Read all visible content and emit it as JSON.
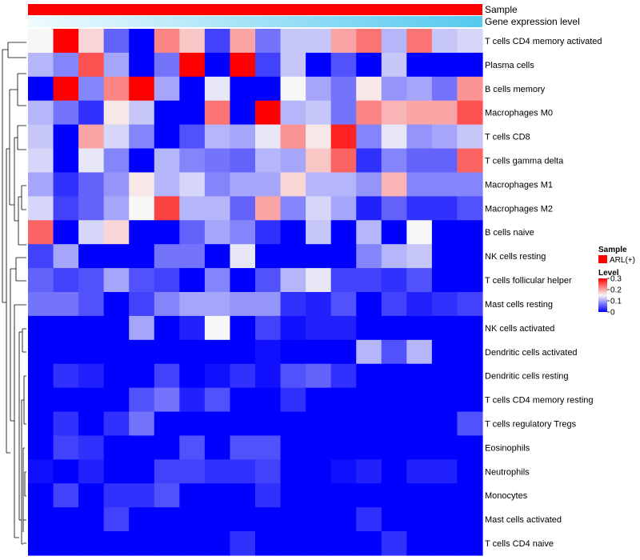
{
  "chart_data": {
    "type": "heatmap",
    "title": "",
    "annotations": [
      {
        "name": "Sample",
        "values": [
          "ARL(+)"
        ],
        "colors": [
          "#ff0000"
        ]
      },
      {
        "name": "Gene expression level",
        "gradient": [
          "#f0fbff",
          "#55c9ee"
        ]
      }
    ],
    "rows": [
      "T cells CD4 memory activated",
      "Plasma cells",
      "B cells memory",
      "Macrophages M0",
      "T cells CD8",
      "T cells gamma delta",
      "Macrophages M1",
      "Macrophages M2",
      "B cells naive",
      "NK cells resting",
      "T cells follicular helper",
      "Mast cells resting",
      "NK cells activated",
      "Dendritic cells activated",
      "Dendritic cells resting",
      "T cells CD4 memory resting",
      "T cells regulatory  Tregs",
      "Eosinophils",
      "Neutrophils",
      "Monocytes",
      "Mast cells activated",
      "T cells CD4 naive"
    ],
    "n_columns": 18,
    "values": [
      [
        0.15,
        0.3,
        0.17,
        0.06,
        0.0,
        0.22,
        0.18,
        0.04,
        0.2,
        0.07,
        0.12,
        0.12,
        0.2,
        0.23,
        0.11,
        0.23,
        0.12,
        0.13
      ],
      [
        0.11,
        0.08,
        0.25,
        0.1,
        0.0,
        0.07,
        0.3,
        0.0,
        0.3,
        0.04,
        0.12,
        0.0,
        0.05,
        0.0,
        0.12,
        0.0,
        0.0,
        0.0
      ],
      [
        0.0,
        0.3,
        0.08,
        0.22,
        0.3,
        0.1,
        0.0,
        0.14,
        0.0,
        0.0,
        0.15,
        0.1,
        0.07,
        0.16,
        0.09,
        0.1,
        0.07,
        0.21
      ],
      [
        0.11,
        0.07,
        0.03,
        0.16,
        0.12,
        0.0,
        0.0,
        0.23,
        0.0,
        0.3,
        0.11,
        0.12,
        0.07,
        0.22,
        0.19,
        0.2,
        0.2,
        0.25
      ],
      [
        0.12,
        0.0,
        0.2,
        0.13,
        0.08,
        0.0,
        0.05,
        0.11,
        0.1,
        0.14,
        0.21,
        0.16,
        0.28,
        0.08,
        0.14,
        0.09,
        0.1,
        0.12
      ],
      [
        0.13,
        0.0,
        0.14,
        0.08,
        0.0,
        0.11,
        0.08,
        0.07,
        0.06,
        0.11,
        0.1,
        0.18,
        0.24,
        0.03,
        0.08,
        0.06,
        0.06,
        0.24
      ],
      [
        0.1,
        0.03,
        0.06,
        0.09,
        0.16,
        0.11,
        0.13,
        0.08,
        0.1,
        0.1,
        0.17,
        0.11,
        0.11,
        0.09,
        0.19,
        0.08,
        0.08,
        0.08
      ],
      [
        0.13,
        0.04,
        0.06,
        0.1,
        0.15,
        0.26,
        0.11,
        0.11,
        0.06,
        0.2,
        0.08,
        0.13,
        0.1,
        0.02,
        0.06,
        0.03,
        0.03,
        0.05
      ],
      [
        0.24,
        0.0,
        0.13,
        0.17,
        0.0,
        0.0,
        0.06,
        0.1,
        0.08,
        0.03,
        0.0,
        0.12,
        0.0,
        0.11,
        0.0,
        0.15,
        0.0,
        0.0
      ],
      [
        0.04,
        0.1,
        0.0,
        0.0,
        0.0,
        0.07,
        0.07,
        0.0,
        0.14,
        0.0,
        0.0,
        0.0,
        0.0,
        0.08,
        0.11,
        0.12,
        0.0,
        0.0
      ],
      [
        0.06,
        0.04,
        0.05,
        0.1,
        0.05,
        0.04,
        0.0,
        0.08,
        0.0,
        0.05,
        0.11,
        0.14,
        0.04,
        0.04,
        0.03,
        0.05,
        0.0,
        0.0
      ],
      [
        0.07,
        0.07,
        0.05,
        0.0,
        0.04,
        0.08,
        0.1,
        0.1,
        0.09,
        0.09,
        0.03,
        0.02,
        0.05,
        0.0,
        0.04,
        0.02,
        0.03,
        0.04
      ],
      [
        0.0,
        0.0,
        0.0,
        0.0,
        0.1,
        0.0,
        0.02,
        0.15,
        0.0,
        0.04,
        0.01,
        0.02,
        0.02,
        0.0,
        0.0,
        0.0,
        0.0,
        0.0
      ],
      [
        0.0,
        0.0,
        0.0,
        0.0,
        0.0,
        0.0,
        0.0,
        0.0,
        0.0,
        0.01,
        0.0,
        0.0,
        0.0,
        0.11,
        0.05,
        0.11,
        0.0,
        0.0
      ],
      [
        0.0,
        0.03,
        0.02,
        0.0,
        0.0,
        0.04,
        0.0,
        0.01,
        0.03,
        0.01,
        0.05,
        0.06,
        0.03,
        0.0,
        0.0,
        0.0,
        0.0,
        0.0
      ],
      [
        0.0,
        0.0,
        0.0,
        0.0,
        0.05,
        0.07,
        0.02,
        0.05,
        0.0,
        0.0,
        0.03,
        0.0,
        0.0,
        0.0,
        0.0,
        0.0,
        0.0,
        0.0
      ],
      [
        0.0,
        0.03,
        0.0,
        0.03,
        0.07,
        0.0,
        0.0,
        0.0,
        0.0,
        0.0,
        0.0,
        0.0,
        0.0,
        0.0,
        0.0,
        0.0,
        0.0,
        0.05
      ],
      [
        0.0,
        0.04,
        0.03,
        0.0,
        0.0,
        0.0,
        0.05,
        0.0,
        0.05,
        0.05,
        0.0,
        0.0,
        0.0,
        0.0,
        0.0,
        0.0,
        0.0,
        0.0
      ],
      [
        0.01,
        0.0,
        0.02,
        0.0,
        0.0,
        0.04,
        0.04,
        0.03,
        0.03,
        0.04,
        0.0,
        0.0,
        0.01,
        0.02,
        0.0,
        0.02,
        0.02,
        0.0
      ],
      [
        0.0,
        0.04,
        0.0,
        0.03,
        0.03,
        0.05,
        0.0,
        0.0,
        0.0,
        0.03,
        0.0,
        0.0,
        0.0,
        0.0,
        0.0,
        0.0,
        0.0,
        0.0
      ],
      [
        0.0,
        0.0,
        0.0,
        0.04,
        0.0,
        0.0,
        0.0,
        0.0,
        0.0,
        0.0,
        0.0,
        0.0,
        0.0,
        0.03,
        0.0,
        0.0,
        0.0,
        0.0
      ],
      [
        0.0,
        0.0,
        0.0,
        0.0,
        0.0,
        0.0,
        0.0,
        0.0,
        0.03,
        0.0,
        0.0,
        0.0,
        0.0,
        0.0,
        0.03,
        0.0,
        0.0,
        0.0
      ]
    ],
    "color_scale": {
      "min": 0,
      "mid": 0.15,
      "max": 0.3,
      "low": "#0000ff",
      "mid_color": "#f7f7f7",
      "high": "#ff0000"
    },
    "legend": {
      "sample_title": "Sample",
      "sample_label": "ARL(+)",
      "level_title": "Level",
      "ticks": [
        {
          "value": 0.3,
          "label": "0.3"
        },
        {
          "value": 0.2,
          "label": "0.2"
        },
        {
          "value": 0.1,
          "label": "0.1"
        },
        {
          "value": 0.0,
          "label": "0"
        }
      ],
      "position": "right"
    }
  }
}
